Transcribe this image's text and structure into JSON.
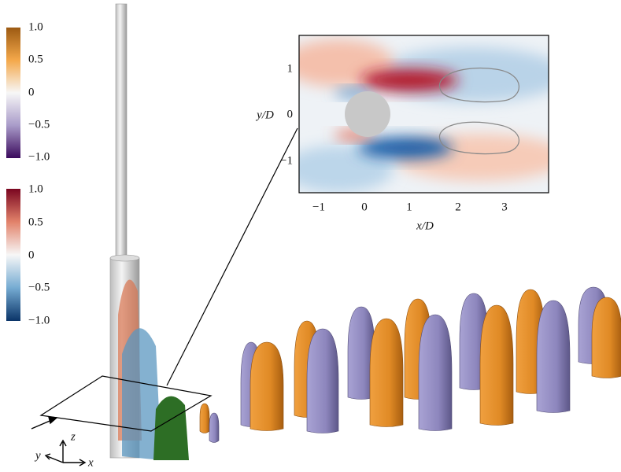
{
  "colorbar_top": {
    "ticks": [
      "1.0",
      "0.5",
      "0",
      "−0.5",
      "−1.0"
    ]
  },
  "colorbar_bottom": {
    "ticks": [
      "1.0",
      "0.5",
      "0",
      "−0.5",
      "−1.0"
    ]
  },
  "inset": {
    "xlabel": "x/D",
    "ylabel": "y/D",
    "xticks": [
      "−1",
      "0",
      "1",
      "2",
      "3"
    ],
    "yticks": [
      "1",
      "0",
      "−1"
    ]
  },
  "axes_triad": {
    "z": "z",
    "y": "y",
    "x": "x"
  }
}
